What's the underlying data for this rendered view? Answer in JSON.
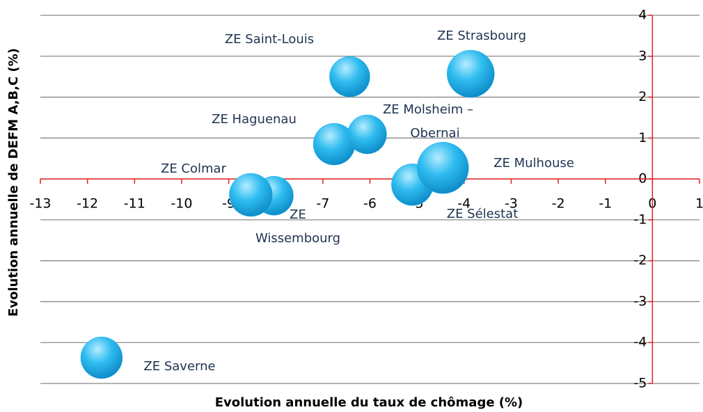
{
  "chart_data": {
    "type": "bubble",
    "x_label": "Evolution annuelle du taux de chômage (%)",
    "y_label": "Evolution annuelle de DEFM A,B,C (%)",
    "x": [
      -11.7,
      -8.04,
      -8.53,
      -5.1,
      -4.45,
      -6.76,
      -6.06,
      -6.43,
      -3.86
    ],
    "y": [
      -4.37,
      -0.41,
      -0.39,
      -0.14,
      0.27,
      0.85,
      1.09,
      2.5,
      2.57
    ],
    "sizes": [
      78,
      68,
      83,
      78,
      118,
      78,
      68,
      73,
      100
    ],
    "labels": [
      [
        "ZE Saverne"
      ],
      [
        "ZE",
        "Wissembourg"
      ],
      [
        "ZE  Colmar"
      ],
      [
        "ZE Sélestat"
      ],
      [
        "ZE Mulhouse"
      ],
      [
        "ZE Haguenau"
      ],
      [
        "ZE Molsheim –",
        "Obernai"
      ],
      [
        "ZE Saint-Louis"
      ],
      [
        "ZE Strasbourg"
      ]
    ],
    "color": "#1fb0e6",
    "xlim": [
      -13,
      1
    ],
    "ylim": [
      -5,
      4
    ],
    "xticks": [
      -13,
      -12,
      -11,
      -10,
      -9,
      -8,
      -7,
      -6,
      -5,
      -4,
      -3,
      -2,
      -1,
      0,
      1
    ],
    "yticks": [
      -5,
      -4,
      -3,
      -2,
      -1,
      0,
      1,
      2,
      3,
      4
    ],
    "grid": true
  }
}
